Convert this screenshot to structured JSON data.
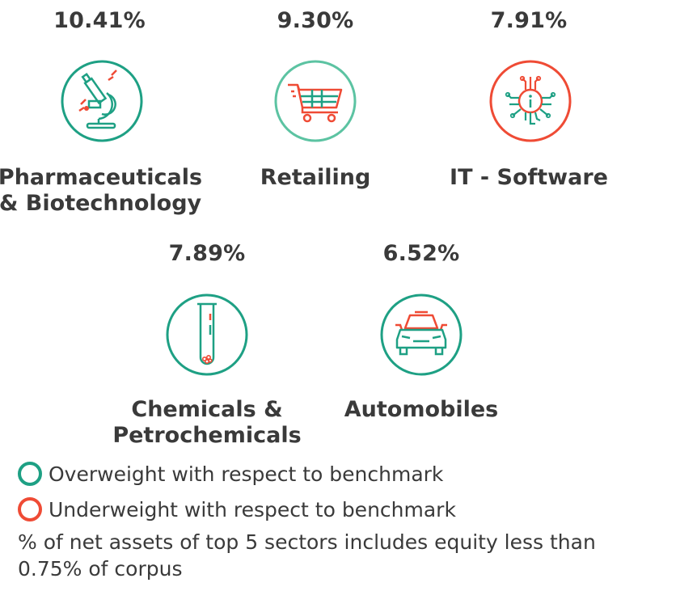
{
  "colors": {
    "overweight": "#1ea084",
    "underweight": "#ef4b35"
  },
  "sectors": [
    {
      "percent": "10.41%",
      "name_line1": "Pharmaceuticals",
      "name_line2": "& Biotechnology",
      "weight": "overweight",
      "icon": "microscope-icon"
    },
    {
      "percent": "9.30%",
      "name_line1": "Retailing",
      "name_line2": "",
      "weight": "overweight",
      "icon": "shopping-cart-icon"
    },
    {
      "percent": "7.91%",
      "name_line1": "IT - Software",
      "name_line2": "",
      "weight": "underweight",
      "icon": "circuit-chip-icon"
    },
    {
      "percent": "7.89%",
      "name_line1": "Chemicals &",
      "name_line2": "Petrochemicals",
      "weight": "overweight",
      "icon": "test-tube-icon"
    },
    {
      "percent": "6.52%",
      "name_line1": "Automobiles",
      "name_line2": "",
      "weight": "overweight",
      "icon": "car-icon"
    }
  ],
  "legend": {
    "overweight_label": "Overweight with respect to benchmark",
    "underweight_label": "Underweight with respect to benchmark"
  },
  "footnote": "% of net assets of top 5 sectors includes equity less than 0.75% of corpus"
}
